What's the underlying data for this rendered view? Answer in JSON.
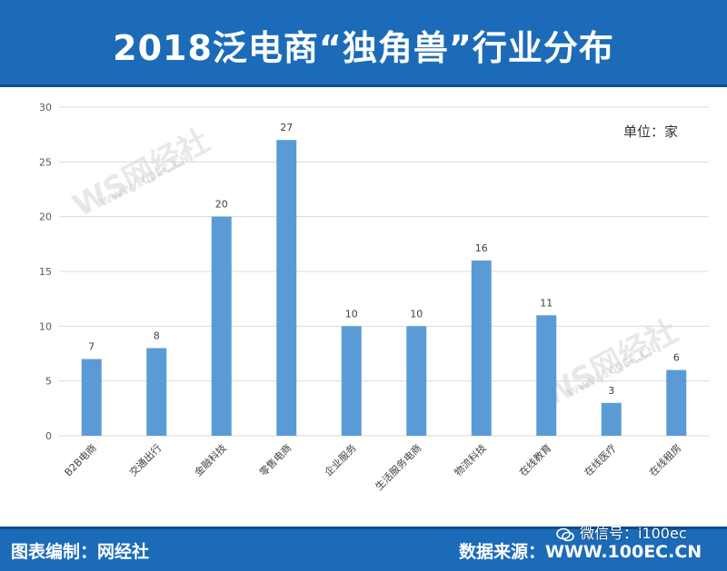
{
  "header": {
    "title": "2018泛电商“独角兽”行业分布"
  },
  "footer": {
    "left": "图表编制：网经社",
    "right": "数据来源：WWW.100EC.CN",
    "wechat": "微信号：i100ec"
  },
  "watermark": {
    "brand": "WS网经社",
    "url": "WWW.100EC.CN"
  },
  "colors": {
    "bar": "#5b9bd5",
    "header_bg": "#1c6bb8",
    "grid": "#d9d9d9"
  },
  "chart_data": {
    "type": "bar",
    "unit_label": "单位：家",
    "categories": [
      "B2B电商",
      "交通出行",
      "金融科技",
      "零售电商",
      "企业服务",
      "生活服务电商",
      "物流科技",
      "在线教育",
      "在线医疗",
      "在线租房"
    ],
    "values": [
      7,
      8,
      20,
      27,
      10,
      10,
      16,
      11,
      3,
      6
    ],
    "ylim": [
      0,
      30
    ],
    "yticks": [
      0,
      5,
      10,
      15,
      20,
      25,
      30
    ],
    "grid": true,
    "data_labels": true
  }
}
